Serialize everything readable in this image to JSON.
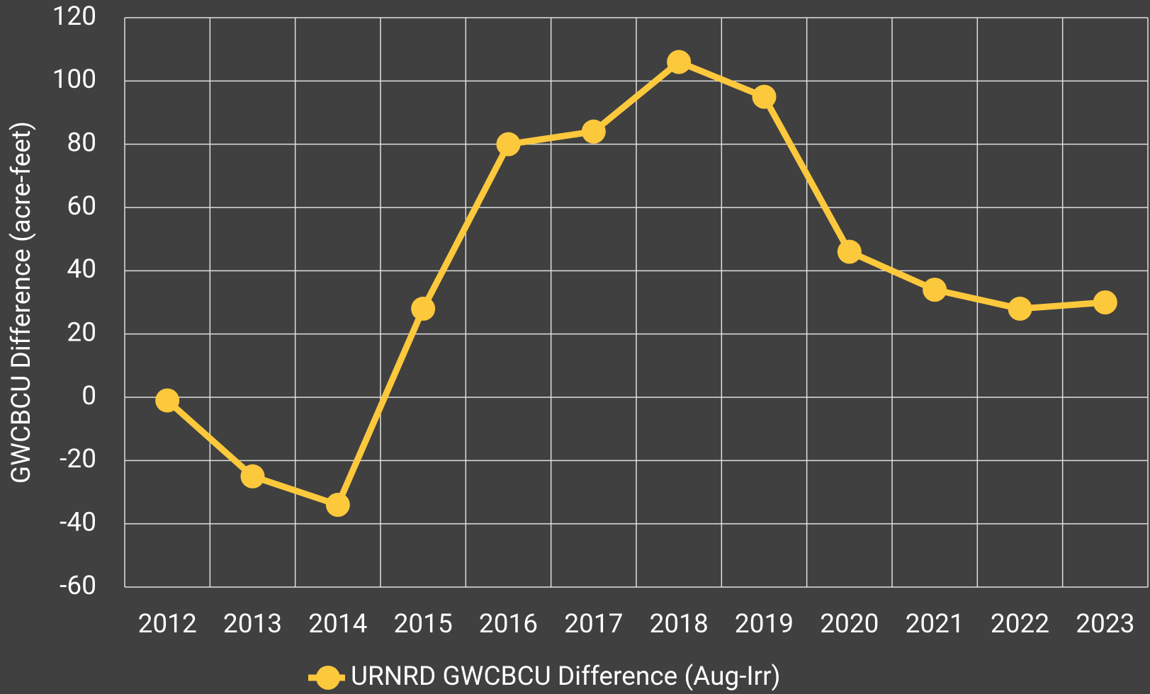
{
  "chart_data": {
    "type": "line",
    "y_label": "GWCBCU Difference (acre-feet)",
    "categories": [
      "2012",
      "2013",
      "2014",
      "2015",
      "2016",
      "2017",
      "2018",
      "2019",
      "2020",
      "2021",
      "2022",
      "2023"
    ],
    "series": [
      {
        "name": "URNRD GWCBCU Difference (Aug-Irr)",
        "color": "#fcc83c",
        "values": [
          -1,
          -25,
          -34,
          28,
          80,
          84,
          106,
          95,
          46,
          34,
          28,
          30
        ]
      }
    ],
    "ylim": [
      -60,
      120
    ],
    "yticks": [
      -60,
      -40,
      -20,
      0,
      20,
      40,
      60,
      80,
      100,
      120
    ],
    "grid": true,
    "legend": "bottom"
  }
}
